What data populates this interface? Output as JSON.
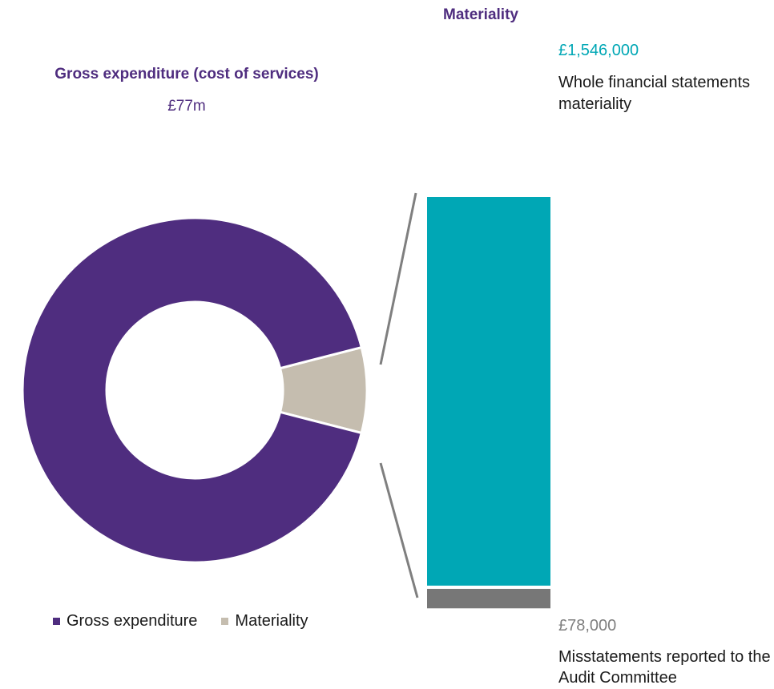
{
  "chart_data": [
    {
      "type": "pie",
      "title": "Gross expenditure (cost of services)",
      "subtitle": "£77m",
      "donut": true,
      "legend_position": "bottom",
      "slices": [
        {
          "name": "Gross expenditure",
          "value": 92,
          "color": "#4f2d7f"
        },
        {
          "name": "Materiality",
          "value": 8,
          "color": "#c5bdaf"
        }
      ]
    },
    {
      "type": "bar",
      "stacked": true,
      "title": "Materiality",
      "segments": [
        {
          "value": 1546000,
          "value_label": "£1,546,000",
          "label": "Whole financial statements materiality",
          "color": "#00a7b5"
        },
        {
          "value": 78000,
          "value_label": "£78,000",
          "label": "Misstatements reported to the Audit Committee",
          "color": "#777777"
        }
      ],
      "connector_color": "#7f7f7f"
    }
  ]
}
